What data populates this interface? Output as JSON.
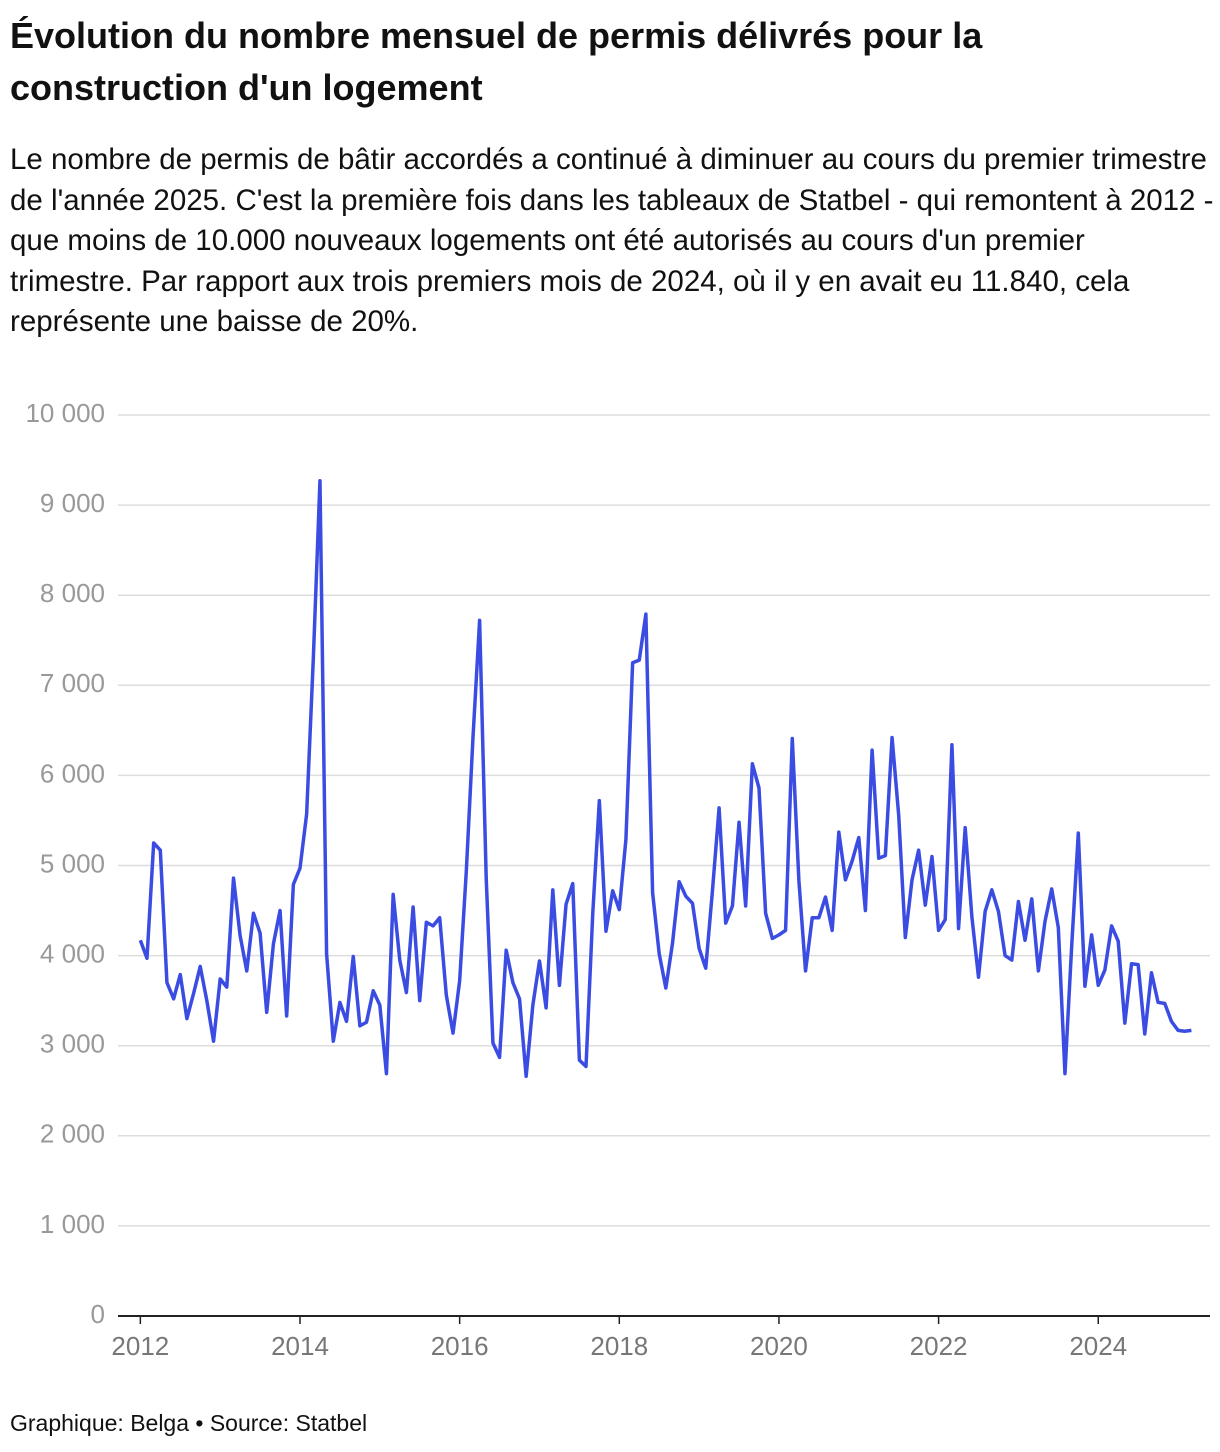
{
  "chart_data": {
    "type": "line",
    "title": "Évolution du nombre mensuel de permis délivrés pour la construction d'un logement",
    "subtitle": "Le nombre de permis de bâtir accordés a continué à diminuer au cours du premier trimestre de l'année 2025. C'est la première fois dans les tableaux de Statbel - qui remontent à 2012 - que moins de 10.000 nouveaux logements ont été autorisés au cours d'un premier trimestre. Par rapport aux trois premiers mois de 2024, où il y en avait eu 11.840, cela représente une baisse de 20%.",
    "footer": "Graphique: Belga • Source: Statbel",
    "x": [
      2012,
      2012.083,
      2012.167,
      2012.25,
      2012.333,
      2012.417,
      2012.5,
      2012.583,
      2012.667,
      2012.75,
      2012.833,
      2012.917,
      2013,
      2013.083,
      2013.167,
      2013.25,
      2013.333,
      2013.417,
      2013.5,
      2013.583,
      2013.667,
      2013.75,
      2013.833,
      2013.917,
      2014,
      2014.083,
      2014.167,
      2014.25,
      2014.333,
      2014.417,
      2014.5,
      2014.583,
      2014.667,
      2014.75,
      2014.833,
      2014.917,
      2015,
      2015.083,
      2015.167,
      2015.25,
      2015.333,
      2015.417,
      2015.5,
      2015.583,
      2015.667,
      2015.75,
      2015.833,
      2015.917,
      2016,
      2016.083,
      2016.167,
      2016.25,
      2016.333,
      2016.417,
      2016.5,
      2016.583,
      2016.667,
      2016.75,
      2016.833,
      2016.917,
      2017,
      2017.083,
      2017.167,
      2017.25,
      2017.333,
      2017.417,
      2017.5,
      2017.583,
      2017.667,
      2017.75,
      2017.833,
      2017.917,
      2018,
      2018.083,
      2018.167,
      2018.25,
      2018.333,
      2018.417,
      2018.5,
      2018.583,
      2018.667,
      2018.75,
      2018.833,
      2018.917,
      2019,
      2019.083,
      2019.167,
      2019.25,
      2019.333,
      2019.417,
      2019.5,
      2019.583,
      2019.667,
      2019.75,
      2019.833,
      2019.917,
      2020,
      2020.083,
      2020.167,
      2020.25,
      2020.333,
      2020.417,
      2020.5,
      2020.583,
      2020.667,
      2020.75,
      2020.833,
      2020.917,
      2021,
      2021.083,
      2021.167,
      2021.25,
      2021.333,
      2021.417,
      2021.5,
      2021.583,
      2021.667,
      2021.75,
      2021.833,
      2021.917,
      2022,
      2022.083,
      2022.167,
      2022.25,
      2022.333,
      2022.417,
      2022.5,
      2022.583,
      2022.667,
      2022.75,
      2022.833,
      2022.917,
      2023,
      2023.083,
      2023.167,
      2023.25,
      2023.333,
      2023.417,
      2023.5,
      2023.583,
      2023.667,
      2023.75,
      2023.833,
      2023.917,
      2024,
      2024.083,
      2024.167,
      2024.25,
      2024.333,
      2024.417,
      2024.5,
      2024.583,
      2024.667,
      2024.75,
      2024.833,
      2024.917,
      2025,
      2025.083,
      2025.167
    ],
    "series": [
      {
        "color": "#3b4ce3",
        "values": [
          4170,
          3970,
          5250,
          5170,
          3700,
          3520,
          3790,
          3300,
          3580,
          3880,
          3500,
          3050,
          3740,
          3650,
          4860,
          4220,
          3830,
          4470,
          4250,
          3370,
          4130,
          4500,
          3330,
          4790,
          4970,
          5570,
          7300,
          9270,
          4020,
          3050,
          3480,
          3270,
          3990,
          3220,
          3260,
          3610,
          3450,
          2690,
          4680,
          3950,
          3590,
          4540,
          3500,
          4370,
          4330,
          4420,
          3560,
          3140,
          3720,
          4930,
          6420,
          7720,
          4850,
          3030,
          2870,
          4060,
          3700,
          3520,
          2660,
          3450,
          3940,
          3420,
          4730,
          3670,
          4570,
          4800,
          2840,
          2770,
          4460,
          5720,
          4270,
          4720,
          4510,
          5290,
          7250,
          7280,
          7790,
          4700,
          4020,
          3640,
          4140,
          4820,
          4660,
          4580,
          4080,
          3860,
          4720,
          5640,
          4360,
          4550,
          5480,
          4550,
          6130,
          5860,
          4470,
          4190,
          4230,
          4280,
          6410,
          4830,
          3830,
          4420,
          4420,
          4650,
          4280,
          5370,
          4840,
          5050,
          5310,
          4500,
          6280,
          5080,
          5110,
          6420,
          5560,
          4200,
          4840,
          5170,
          4560,
          5100,
          4280,
          4400,
          6340,
          4300,
          5420,
          4430,
          3760,
          4490,
          4730,
          4490,
          4000,
          3950,
          4600,
          4170,
          4630,
          3830,
          4380,
          4740,
          4310,
          2690,
          4100,
          5360,
          3660,
          4230,
          3670,
          3840,
          4330,
          4160,
          3250,
          3910,
          3900,
          3130,
          3810,
          3480,
          3470,
          3270,
          3170,
          3160,
          3170
        ]
      }
    ],
    "xlim": [
      2011.72,
      2025.4
    ],
    "xticks": [
      2012,
      2014,
      2016,
      2018,
      2020,
      2022,
      2024
    ],
    "ylim": [
      0,
      10000
    ],
    "yticks": [
      0,
      {
        "value": 1000,
        "label": "1 000"
      },
      {
        "value": 2000,
        "label": "2 000"
      },
      {
        "value": 3000,
        "label": "3 000"
      },
      {
        "value": 4000,
        "label": "4 000"
      },
      {
        "value": 5000,
        "label": "5 000"
      },
      {
        "value": 6000,
        "label": "6 000"
      },
      {
        "value": 7000,
        "label": "7 000"
      },
      {
        "value": 8000,
        "label": "8 000"
      },
      {
        "value": 9000,
        "label": "9 000"
      },
      {
        "value": 10000,
        "label": "10 000"
      }
    ],
    "grid": true
  }
}
